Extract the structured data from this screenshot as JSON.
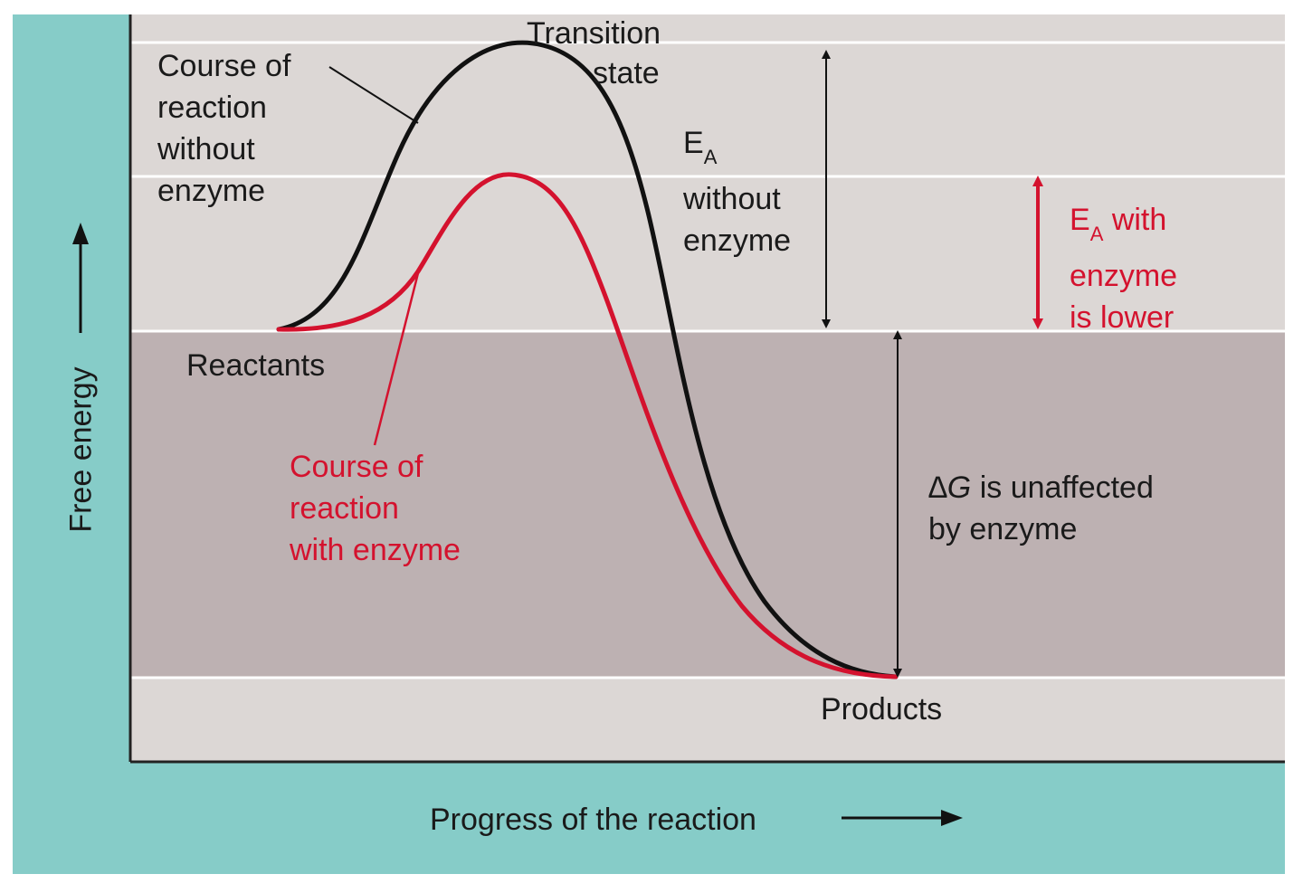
{
  "axes": {
    "x_label": "Progress of the reaction",
    "y_label": "Free energy"
  },
  "labels": {
    "transition_state_line1": "Transition",
    "transition_state_line2": "state",
    "no_enzyme_line1": "Course of",
    "no_enzyme_line2": "reaction",
    "no_enzyme_line3": "without",
    "no_enzyme_line4": "enzyme",
    "ea_without_symbol": "E",
    "ea_without_subscript": "A",
    "ea_without_line2": "without",
    "ea_without_line3": "enzyme",
    "ea_with_symbol": "E",
    "ea_with_subscript": "A",
    "ea_with_line1_rest": " with",
    "ea_with_line2": "enzyme",
    "ea_with_line3": "is lower",
    "reactants": "Reactants",
    "with_enzyme_line1": "Course of",
    "with_enzyme_line2": "reaction",
    "with_enzyme_line3": "with enzyme",
    "delta_g_symbol": "∆G",
    "delta_g_line1_rest": " is unaffected",
    "delta_g_line2": "by enzyme",
    "products": "Products"
  },
  "colors": {
    "frame": "#86ccc8",
    "panel_light": "#dcd7d5",
    "panel_dark": "#bdb1b2",
    "curve_without_enzyme": "#111111",
    "curve_with_enzyme": "#d4122e"
  }
}
